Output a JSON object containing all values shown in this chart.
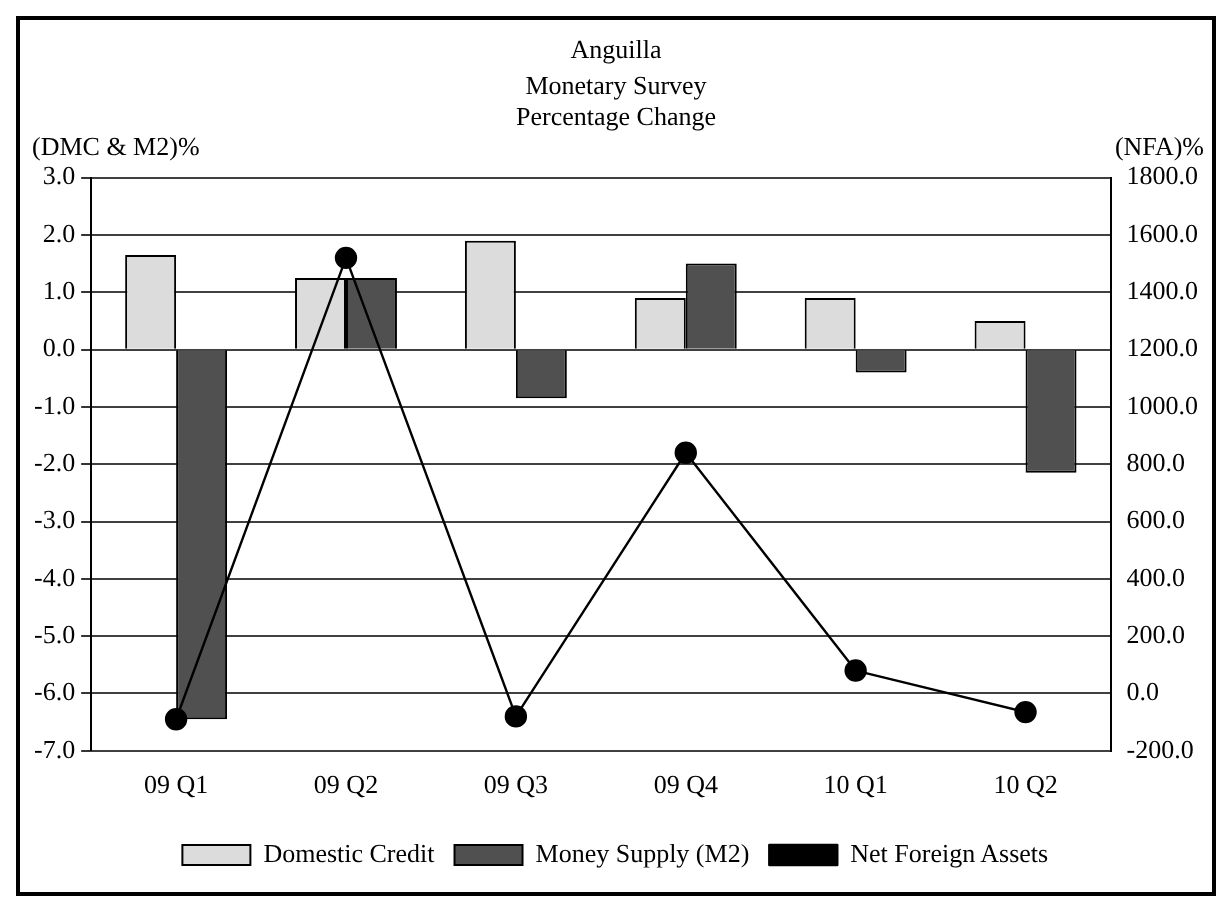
{
  "chart_data": {
    "type": "bar",
    "title": "Anguilla",
    "subtitle": "Monetary Survey Percentage Change",
    "ylabel": "(DMC & M2)%",
    "y2label": "(NFA)%",
    "categories": [
      "09 Q1",
      "09 Q2",
      "09 Q3",
      "09 Q4",
      "10 Q1",
      "10 Q2"
    ],
    "series": [
      {
        "name": "Domestic Credit",
        "color": "#dcdcdc",
        "values": [
          1.65,
          1.25,
          1.9,
          0.9,
          0.9,
          0.5
        ]
      },
      {
        "name": "Money Supply (M2)",
        "color": "#505050",
        "values": [
          -6.45,
          1.25,
          -0.85,
          1.5,
          -0.4,
          -2.15
        ]
      },
      {
        "name": "Net Foreign Assets",
        "type": "line",
        "axis": "y2",
        "color": "#000000",
        "values": [
          -90,
          1520,
          -80,
          840,
          80,
          -65
        ]
      }
    ],
    "ylim": [
      -7,
      3
    ],
    "yticks": [
      {
        "value": 3,
        "label": "3.0"
      },
      {
        "value": 2,
        "label": "2.0"
      },
      {
        "value": 1,
        "label": "1.0"
      },
      {
        "value": 0,
        "label": "0.0"
      },
      {
        "value": -1,
        "label": "-1.0"
      },
      {
        "value": -2,
        "label": "-2.0"
      },
      {
        "value": -3,
        "label": "-3.0"
      },
      {
        "value": -4,
        "label": "-4.0"
      },
      {
        "value": -5,
        "label": "-5.0"
      },
      {
        "value": -6,
        "label": "-6.0"
      },
      {
        "value": -7,
        "label": "-7.0"
      }
    ],
    "y2lim": [
      -200,
      1800
    ],
    "y2ticks": [
      {
        "value": 1800,
        "label": "1800.0"
      },
      {
        "value": 1600,
        "label": "1600.0"
      },
      {
        "value": 1400,
        "label": "1400.0"
      },
      {
        "value": 1200,
        "label": "1200.0"
      },
      {
        "value": 1000,
        "label": "1000.0"
      },
      {
        "value": 800,
        "label": "800.0"
      },
      {
        "value": 600,
        "label": "600.0"
      },
      {
        "value": 400,
        "label": "400.0"
      },
      {
        "value": 200,
        "label": "200.0"
      },
      {
        "value": 0,
        "label": "0.0"
      },
      {
        "value": -200,
        "label": "-200.0"
      }
    ],
    "grid": "y",
    "legend": "bottom",
    "marker": "circle",
    "line_style": "solid"
  }
}
